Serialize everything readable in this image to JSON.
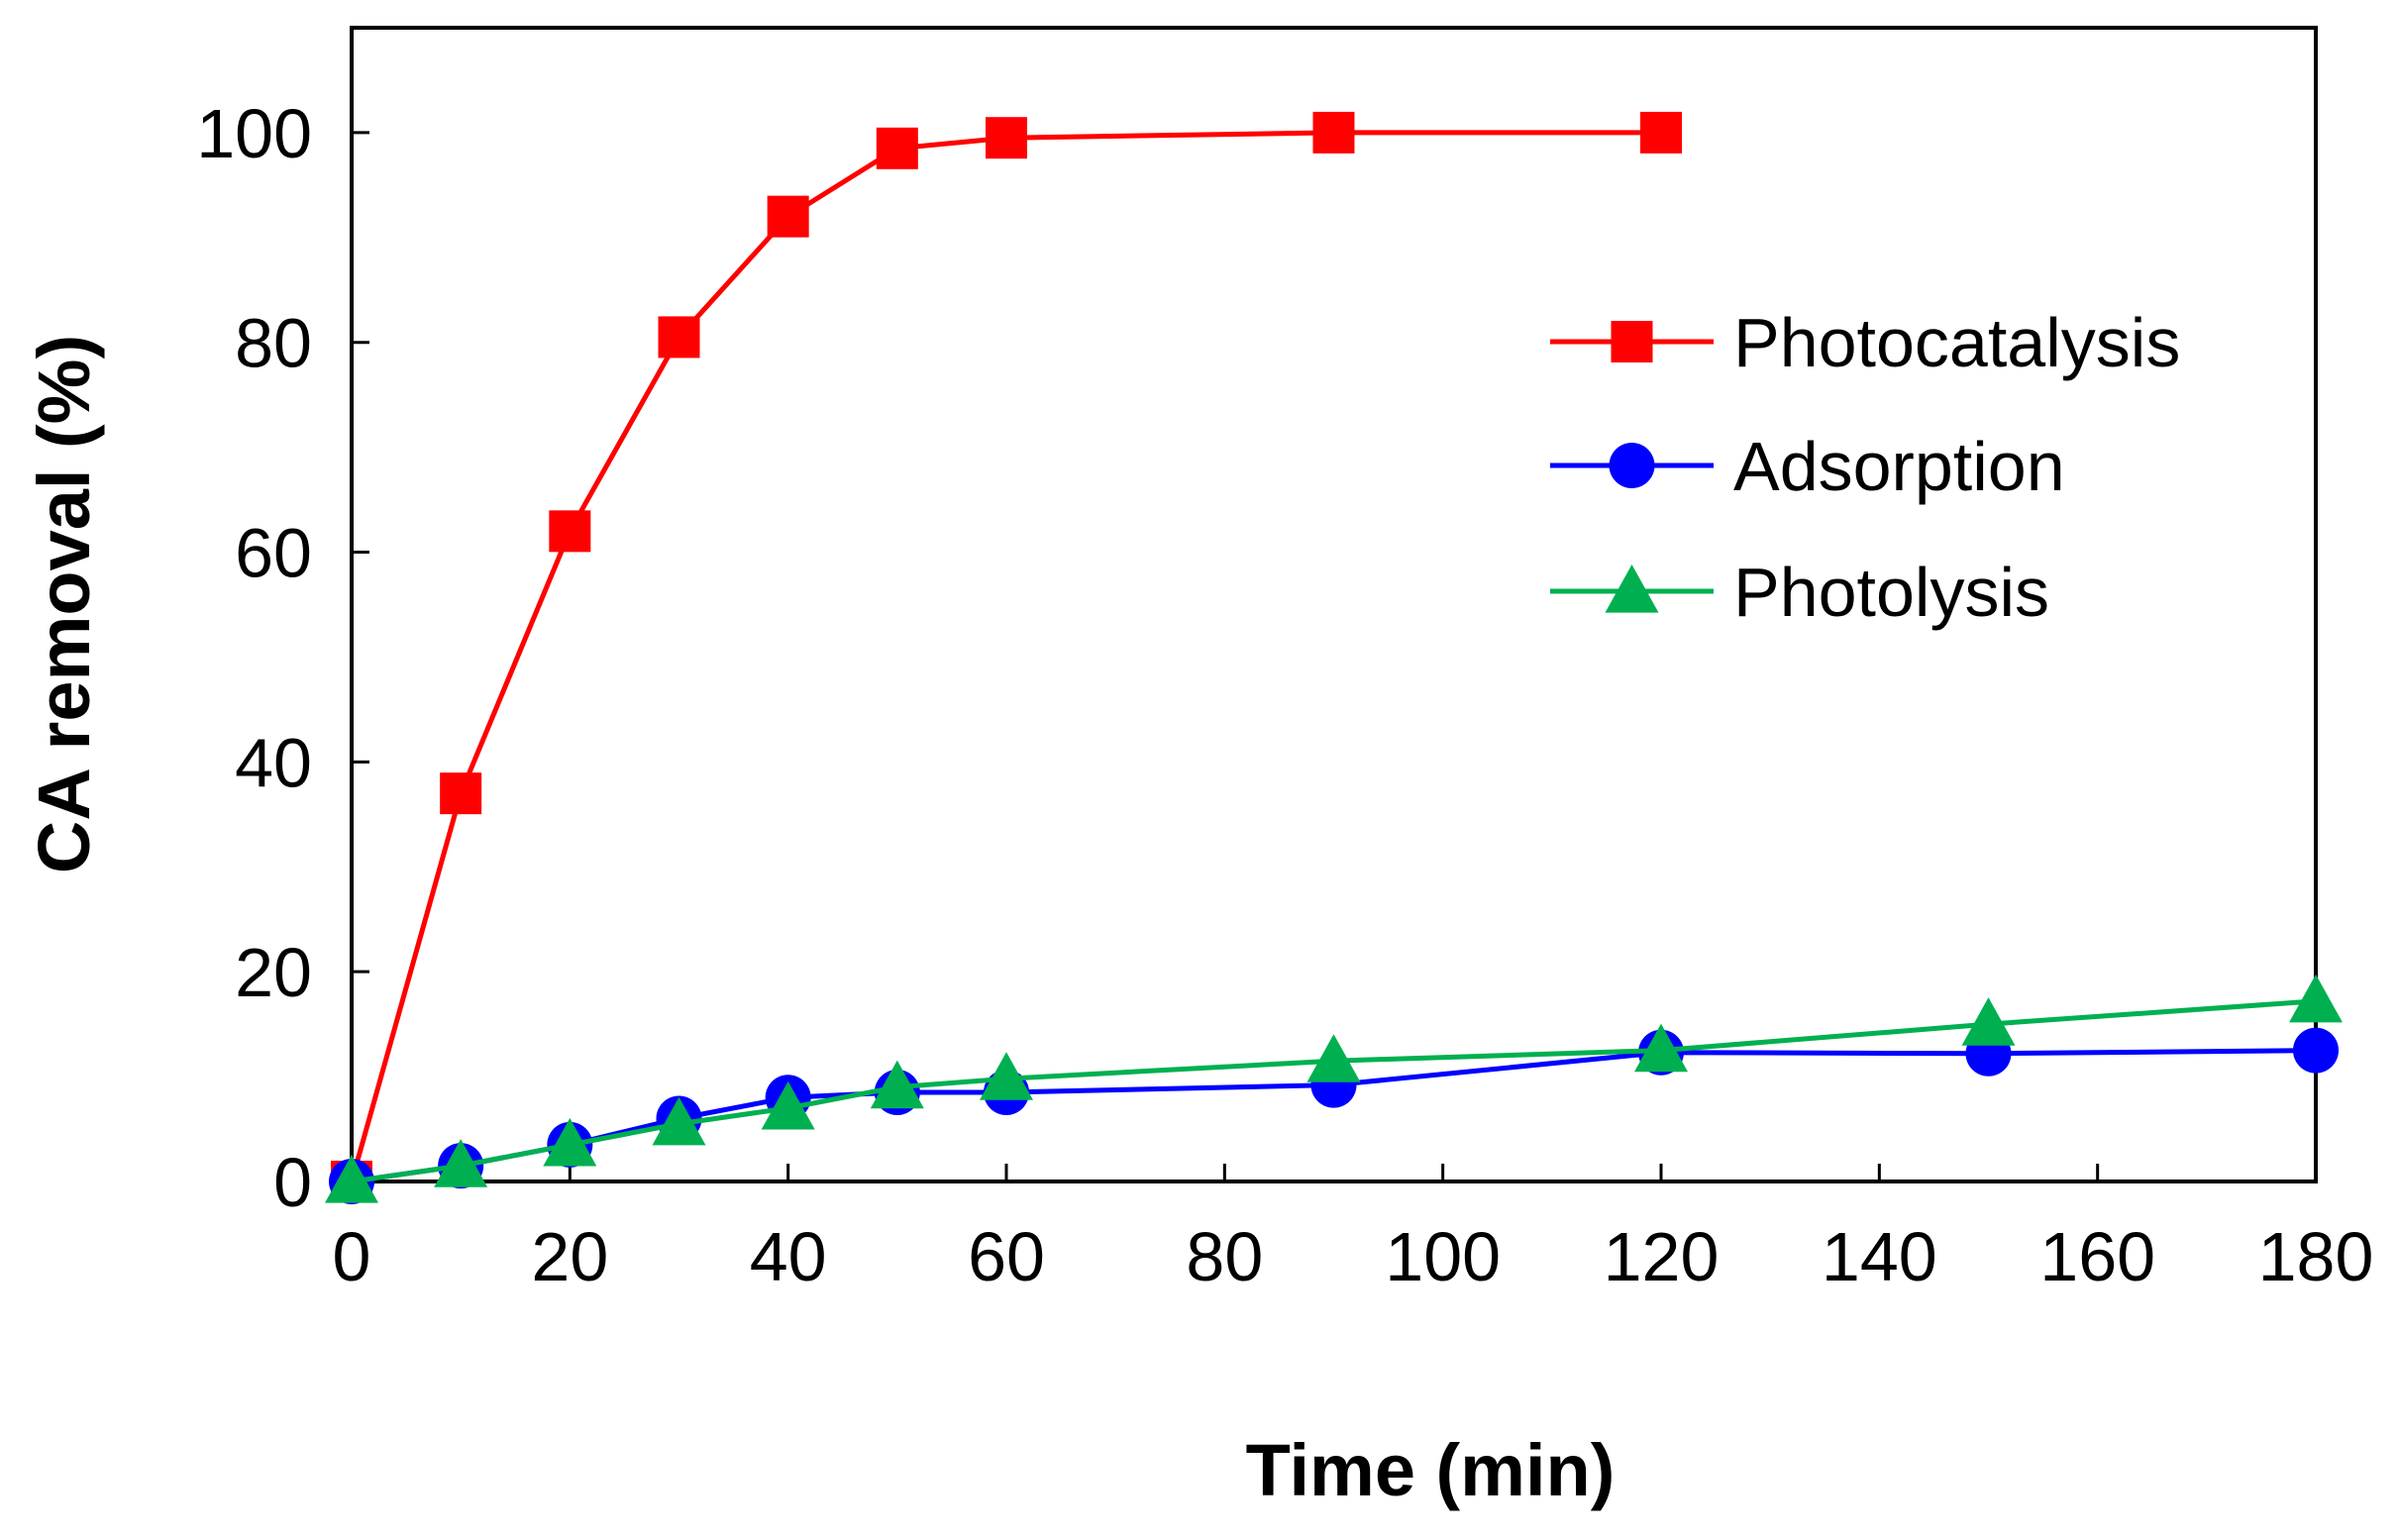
{
  "chart_data": {
    "type": "line",
    "title": "",
    "xlabel": "Time (min)",
    "ylabel": "CA removal (%)",
    "xlim": [
      0,
      180
    ],
    "ylim": [
      0,
      110
    ],
    "xticks": [
      0,
      20,
      40,
      60,
      80,
      100,
      120,
      140,
      160,
      180
    ],
    "yticks": [
      0,
      20,
      40,
      60,
      80,
      100
    ],
    "grid": false,
    "legend": "right, upper",
    "series": [
      {
        "name": "Photocatalysis",
        "color": "#ff0000",
        "marker": "square",
        "x": [
          0,
          10,
          20,
          30,
          40,
          50,
          60,
          90,
          120
        ],
        "y": [
          0,
          37,
          62,
          80.5,
          92,
          98.5,
          99.5,
          100,
          100
        ]
      },
      {
        "name": "Adsorption",
        "color": "#0000ff",
        "marker": "circle",
        "x": [
          0,
          10,
          20,
          30,
          40,
          50,
          60,
          90,
          120,
          150,
          180
        ],
        "y": [
          0,
          1.5,
          3.5,
          6,
          8,
          8.5,
          8.5,
          9.2,
          12.3,
          12.2,
          12.5
        ]
      },
      {
        "name": "Photolysis",
        "color": "#00b050",
        "marker": "triangle",
        "x": [
          0,
          10,
          20,
          30,
          40,
          50,
          60,
          90,
          120,
          150,
          180
        ],
        "y": [
          0,
          1.5,
          3.5,
          5.5,
          7,
          9,
          9.8,
          11.5,
          12.5,
          15,
          17.2
        ]
      }
    ]
  }
}
